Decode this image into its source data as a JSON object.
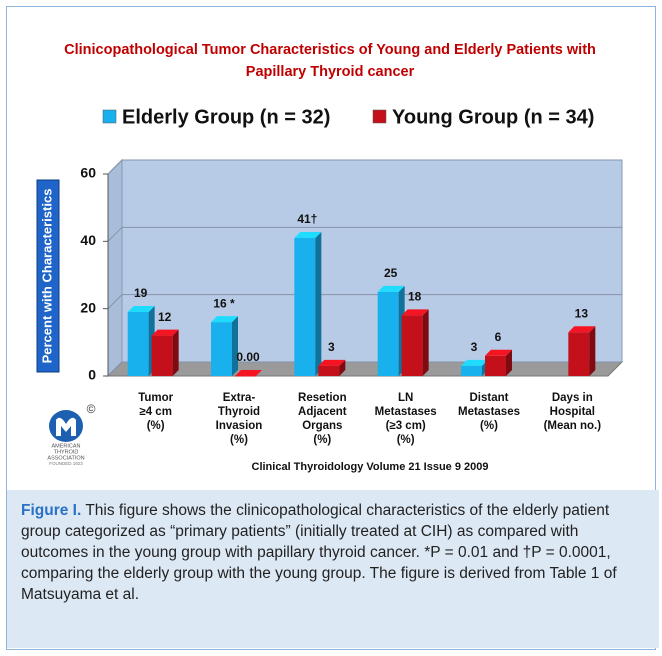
{
  "chart_data": {
    "type": "bar3d",
    "title": "Clinicopathological  Tumor Characteristics of Young and Elderly Patients with",
    "subtitle": "Papillary Thyroid cancer",
    "ylabel": "Percent with Characteristics",
    "categories": [
      "Tumor\n≥4 cm\n(%)",
      "Extra-\nThyroid\nInvasion\n(%)",
      "Resetion\nAdjacent\nOrgans\n(%)",
      "LN\nMetastases\n(≥3 cm)\n(%)",
      "Distant\nMetastases\n(%)",
      "Days in\nHospital\n(Mean no.)"
    ],
    "series": [
      {
        "name": "Elderly Group  (n = 32)",
        "color": "#19b0ee",
        "values": [
          19,
          16,
          41,
          25,
          3,
          null
        ],
        "value_labels": [
          "19",
          "16 *",
          "41†",
          "25",
          "3",
          null
        ]
      },
      {
        "name": "Young Group (n = 34)",
        "color": "#c4101a",
        "values": [
          12,
          0,
          3,
          18,
          6,
          13
        ],
        "value_labels": [
          "12",
          "0.00",
          "3",
          "18",
          "6",
          "13"
        ]
      }
    ],
    "ylim": [
      0,
      60
    ],
    "yticks": [
      0,
      20,
      40,
      60
    ],
    "grid": true,
    "source": "Clinical Thyroidology Volume 21 Issue 9 2009"
  },
  "logo": {
    "mark": "©",
    "lines": [
      "AMERICAN",
      "THYROID",
      "ASSOCIATION",
      "FOUNDED 1923"
    ]
  },
  "caption": {
    "label": "Figure I.",
    "text": "This figure shows the clinicopathological characteristics of the elderly patient group categorized as “primary patients” (initially treated at CIH) as compared with outcomes in the young group with papillary thyroid cancer. *P = 0.01 and †P = 0.0001, comparing the elderly group with the young group. The figure is derived from Table 1 of Matsuyama et al."
  }
}
